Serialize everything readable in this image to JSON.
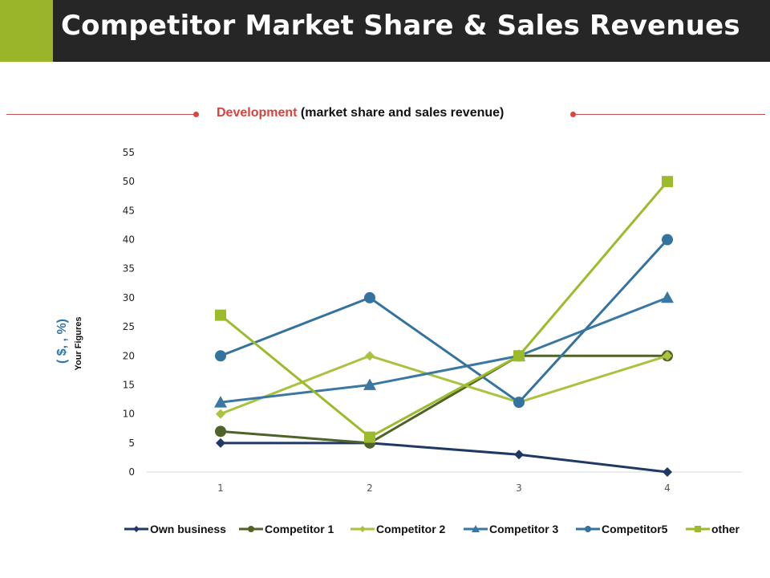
{
  "header": {
    "title": "Competitor Market Share & Sales Revenues"
  },
  "subtitle": {
    "highlight": "Development",
    "rest": " (market share and sales revenue)"
  },
  "colors": {
    "title_bg": "#262626",
    "accent": "#9bb52b",
    "rule": "#c0504d"
  },
  "chart_data": {
    "type": "line",
    "title": "Development (market share and sales revenue)",
    "xlabel": "",
    "ylabel": "Your Figures",
    "ylabel_units": "( $, , %)",
    "x": [
      1,
      2,
      3,
      4
    ],
    "ylim": [
      0,
      55
    ],
    "yticks": [
      0,
      5,
      10,
      15,
      20,
      25,
      30,
      35,
      40,
      45,
      50,
      55
    ],
    "grid": false,
    "legend": "bottom",
    "series": [
      {
        "name": "Own business",
        "values": [
          5,
          5,
          3,
          0
        ],
        "color": "#203864",
        "marker": "diamond"
      },
      {
        "name": "Competitor 1",
        "values": [
          7,
          5,
          20,
          20
        ],
        "color": "#4f6228",
        "marker": "circle"
      },
      {
        "name": "Competitor 2",
        "values": [
          10,
          20,
          12,
          20
        ],
        "color": "#a9c23f",
        "marker": "diamond"
      },
      {
        "name": "Competitor 3",
        "values": [
          12,
          15,
          20,
          30
        ],
        "color": "#3a78a3",
        "marker": "triangle"
      },
      {
        "name": "Competitor5",
        "values": [
          20,
          30,
          12,
          40
        ],
        "color": "#33739e",
        "marker": "circle"
      },
      {
        "name": "other",
        "values": [
          27,
          6,
          20,
          50
        ],
        "color": "#9bbb2c",
        "marker": "square"
      }
    ]
  }
}
